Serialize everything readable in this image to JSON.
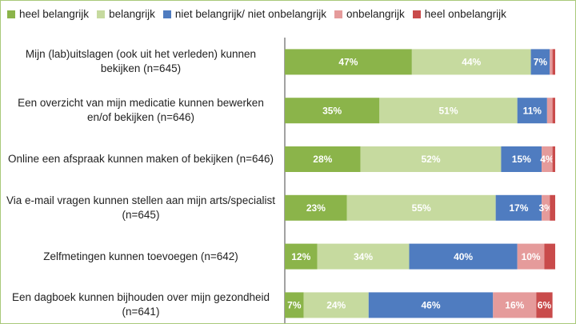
{
  "chart_data": {
    "type": "stacked-bar-horizontal",
    "categories": [
      "Mijn (lab)uitslagen (ook uit het verleden) kunnen bekijken (n=645)",
      "Een overzicht van mijn medicatie kunnen bewerken en/of bekijken (n=646)",
      "Online een afspraak kunnen maken of bekijken (n=646)",
      "Via e-mail vragen kunnen stellen aan mijn arts/specialist (n=645)",
      "Zelfmetingen kunnen toevoegen (n=642)",
      "Een dagboek kunnen bijhouden over mijn gezondheid (n=641)"
    ],
    "xlim": [
      0,
      100
    ],
    "series": [
      {
        "name": "heel belangrijk",
        "color": "#8bb44a",
        "values": [
          47,
          35,
          28,
          23,
          12,
          7
        ],
        "value_labels": [
          "47%",
          "35%",
          "28%",
          "23%",
          "12%",
          "7%"
        ]
      },
      {
        "name": "belangrijk",
        "color": "#c6da9f",
        "values": [
          44,
          51,
          52,
          55,
          34,
          24
        ],
        "value_labels": [
          "44%",
          "51%",
          "52%",
          "55%",
          "34%",
          "24%"
        ]
      },
      {
        "name": "niet belangrijk/ niet onbelangrijk",
        "color": "#4f7cc0",
        "values": [
          7,
          11,
          15,
          17,
          40,
          46
        ],
        "value_labels": [
          "7%",
          "11%",
          "15%",
          "17%",
          "40%",
          "46%"
        ]
      },
      {
        "name": "onbelangrijk",
        "color": "#e59b9b",
        "values": [
          1,
          2,
          4,
          3,
          10,
          16
        ],
        "value_labels": [
          null,
          null,
          "4%",
          "3%",
          "10%",
          "16%"
        ]
      },
      {
        "name": "heel onbelangrijk",
        "color": "#c94b4b",
        "values": [
          1,
          1,
          1,
          2,
          4,
          6
        ],
        "value_labels": [
          null,
          null,
          null,
          null,
          null,
          "6%"
        ]
      }
    ]
  }
}
